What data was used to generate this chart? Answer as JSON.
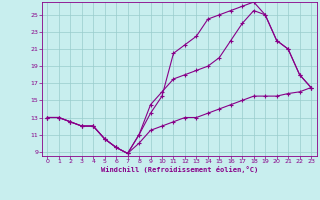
{
  "bg_color": "#c8eeee",
  "line_color": "#880088",
  "grid_color": "#99cccc",
  "xlabel": "Windchill (Refroidissement éolien,°C)",
  "xlim_min": -0.5,
  "xlim_max": 23.5,
  "ylim_min": 8.5,
  "ylim_max": 26.5,
  "xticks": [
    0,
    1,
    2,
    3,
    4,
    5,
    6,
    7,
    8,
    9,
    10,
    11,
    12,
    13,
    14,
    15,
    16,
    17,
    18,
    19,
    20,
    21,
    22,
    23
  ],
  "yticks": [
    9,
    11,
    13,
    15,
    17,
    19,
    21,
    23,
    25
  ],
  "curve1_x": [
    0,
    1,
    2,
    3,
    4,
    5,
    6,
    7,
    8,
    9,
    10,
    11,
    12,
    13,
    14,
    15,
    16,
    17,
    18,
    19,
    20,
    21,
    22,
    23
  ],
  "curve1_y": [
    13.0,
    13.0,
    12.5,
    12.0,
    12.0,
    10.5,
    9.5,
    8.8,
    11.0,
    13.5,
    15.5,
    20.5,
    21.5,
    22.5,
    24.5,
    25.0,
    25.5,
    26.0,
    26.5,
    25.0,
    22.0,
    21.0,
    18.0,
    16.5
  ],
  "curve2_x": [
    0,
    1,
    2,
    3,
    4,
    5,
    6,
    7,
    8,
    9,
    10,
    11,
    12,
    13,
    14,
    15,
    16,
    17,
    18,
    19,
    20,
    21,
    22,
    23
  ],
  "curve2_y": [
    13.0,
    13.0,
    12.5,
    12.0,
    12.0,
    10.5,
    9.5,
    8.8,
    11.0,
    14.5,
    16.0,
    17.5,
    18.0,
    18.5,
    19.0,
    20.0,
    22.0,
    24.0,
    25.5,
    25.0,
    22.0,
    21.0,
    18.0,
    16.5
  ],
  "curve3_x": [
    0,
    1,
    2,
    3,
    4,
    5,
    6,
    7,
    8,
    9,
    10,
    11,
    12,
    13,
    14,
    15,
    16,
    17,
    18,
    19,
    20,
    21,
    22,
    23
  ],
  "curve3_y": [
    13.0,
    13.0,
    12.5,
    12.0,
    12.0,
    10.5,
    9.5,
    8.8,
    10.0,
    11.5,
    12.0,
    12.5,
    13.0,
    13.0,
    13.5,
    14.0,
    14.5,
    15.0,
    15.5,
    15.5,
    15.5,
    15.8,
    16.0,
    16.5
  ]
}
